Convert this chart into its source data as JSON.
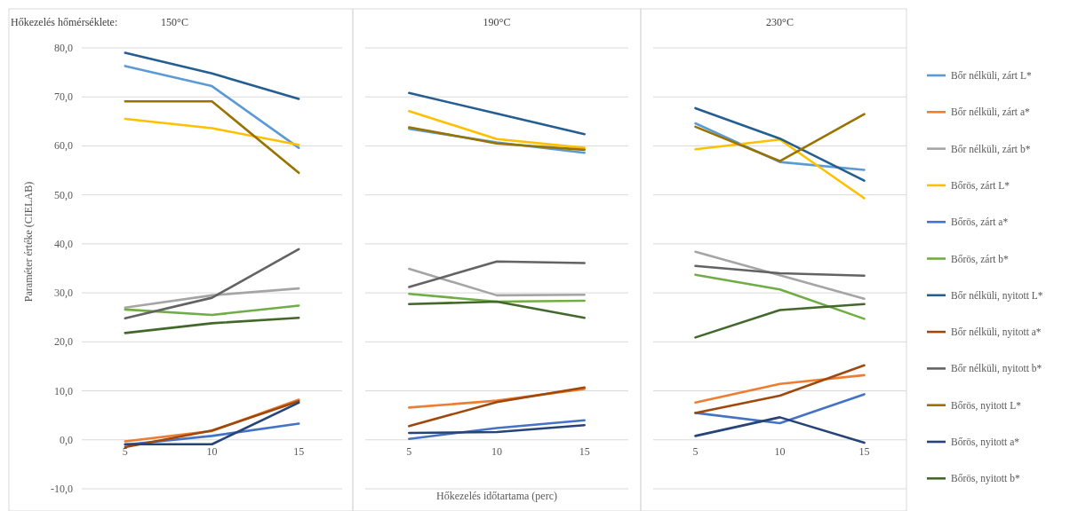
{
  "chart_data": [
    {
      "type": "line",
      "title": "150°C",
      "annotations": [
        "Hőkezelés hőmérséklete:"
      ],
      "ylabel": "Paraméter értéke (CIELAB)",
      "categories": [
        "5",
        "10",
        "15"
      ],
      "ylim": [
        -10,
        80
      ],
      "yticks": [
        {
          "value": -10,
          "label": "-10,0"
        },
        {
          "value": 0,
          "label": "0,0"
        },
        {
          "value": 10,
          "label": "10,0"
        },
        {
          "value": 20,
          "label": "20,0"
        },
        {
          "value": 30,
          "label": "30,0"
        },
        {
          "value": 40,
          "label": "40,0"
        },
        {
          "value": 50,
          "label": "50,0"
        },
        {
          "value": 60,
          "label": "60,0"
        },
        {
          "value": 70,
          "label": "70,0"
        },
        {
          "value": 80,
          "label": "80,0"
        }
      ],
      "grid": "y",
      "series": [
        {
          "color": "#5b9bd5",
          "values": [
            76.3,
            72.2,
            59.6
          ]
        },
        {
          "color": "#ed7d31",
          "values": [
            -0.3,
            1.8,
            8.2
          ]
        },
        {
          "color": "#a5a5a5",
          "values": [
            27.0,
            29.5,
            30.9
          ]
        },
        {
          "color": "#ffc000",
          "values": [
            65.5,
            63.6,
            60.2
          ]
        },
        {
          "color": "#4472c4",
          "values": [
            -1.0,
            0.8,
            3.3
          ]
        },
        {
          "color": "#70ad47",
          "values": [
            26.6,
            25.5,
            27.4
          ]
        },
        {
          "color": "#255e91",
          "values": [
            79.0,
            74.8,
            69.6
          ]
        },
        {
          "color": "#9e480e",
          "values": [
            -1.5,
            1.9,
            7.9
          ]
        },
        {
          "color": "#636363",
          "values": [
            24.8,
            29.0,
            38.9
          ]
        },
        {
          "color": "#997300",
          "values": [
            69.1,
            69.1,
            54.5
          ]
        },
        {
          "color": "#264478",
          "values": [
            -0.9,
            -0.9,
            7.6
          ]
        },
        {
          "color": "#43682b",
          "values": [
            21.8,
            23.8,
            24.9
          ]
        }
      ]
    },
    {
      "type": "line",
      "title": "190°C",
      "xlabel": "Hőkezelés időtartama (perc)",
      "categories": [
        "5",
        "10",
        "15"
      ],
      "ylim": [
        -10,
        80
      ],
      "yticks": [
        -10,
        0,
        10,
        20,
        30,
        40,
        50,
        60,
        70,
        80
      ],
      "tick_labels": "x",
      "grid": "y",
      "series": [
        {
          "color": "#5b9bd5",
          "values": [
            63.5,
            60.7,
            58.6
          ]
        },
        {
          "color": "#ed7d31",
          "values": [
            6.6,
            8.0,
            10.4
          ]
        },
        {
          "color": "#a5a5a5",
          "values": [
            34.9,
            29.5,
            29.6
          ]
        },
        {
          "color": "#ffc000",
          "values": [
            67.1,
            61.4,
            59.6
          ]
        },
        {
          "color": "#4472c4",
          "values": [
            0.2,
            2.4,
            4.0
          ]
        },
        {
          "color": "#70ad47",
          "values": [
            29.8,
            28.2,
            28.4
          ]
        },
        {
          "color": "#255e91",
          "values": [
            70.8,
            66.6,
            62.4
          ]
        },
        {
          "color": "#9e480e",
          "values": [
            2.8,
            7.7,
            10.7
          ]
        },
        {
          "color": "#636363",
          "values": [
            31.2,
            36.4,
            36.1
          ]
        },
        {
          "color": "#997300",
          "values": [
            63.8,
            60.5,
            59.2
          ]
        },
        {
          "color": "#264478",
          "values": [
            1.4,
            1.6,
            3.0
          ]
        },
        {
          "color": "#43682b",
          "values": [
            27.7,
            28.2,
            24.9
          ]
        }
      ]
    },
    {
      "type": "line",
      "title": "230°C",
      "categories": [
        "5",
        "10",
        "15"
      ],
      "ylim": [
        -10,
        80
      ],
      "yticks": [
        -10,
        0,
        10,
        20,
        30,
        40,
        50,
        60,
        70,
        80
      ],
      "tick_labels": "x",
      "grid": "y",
      "legend": "right",
      "series": [
        {
          "name": "Bőr nélküli, zárt L*",
          "color": "#5b9bd5",
          "values": [
            64.6,
            56.7,
            55.1
          ]
        },
        {
          "name": "Bőr nélküli, zárt a*",
          "color": "#ed7d31",
          "values": [
            7.6,
            11.4,
            13.2
          ]
        },
        {
          "name": "Bőr nélküli, zárt b*",
          "color": "#a5a5a5",
          "values": [
            38.4,
            33.6,
            28.8
          ]
        },
        {
          "name": "Bőrös, zárt L*",
          "color": "#ffc000",
          "values": [
            59.3,
            61.3,
            49.3
          ]
        },
        {
          "name": "Bőrös, zárt a*",
          "color": "#4472c4",
          "values": [
            5.5,
            3.4,
            9.3
          ]
        },
        {
          "name": "Bőrös, zárt b*",
          "color": "#70ad47",
          "values": [
            33.7,
            30.7,
            24.7
          ]
        },
        {
          "name": "Bőr nélküli, nyitott L*",
          "color": "#255e91",
          "values": [
            67.7,
            61.5,
            52.9
          ]
        },
        {
          "name": "Bőr nélküli, nyitott a*",
          "color": "#9e480e",
          "values": [
            5.5,
            9.0,
            15.2
          ]
        },
        {
          "name": "Bőr nélküli, nyitott b*",
          "color": "#636363",
          "values": [
            35.5,
            34.0,
            33.5
          ]
        },
        {
          "name": "Bőrös, nyitott L*",
          "color": "#997300",
          "values": [
            63.9,
            56.9,
            66.5
          ]
        },
        {
          "name": "Bőrös, nyitott a*",
          "color": "#264478",
          "values": [
            0.8,
            4.6,
            -0.6
          ]
        },
        {
          "name": "Bőrös, nyitott b*",
          "color": "#43682b",
          "values": [
            20.9,
            26.5,
            27.7
          ]
        }
      ]
    }
  ]
}
